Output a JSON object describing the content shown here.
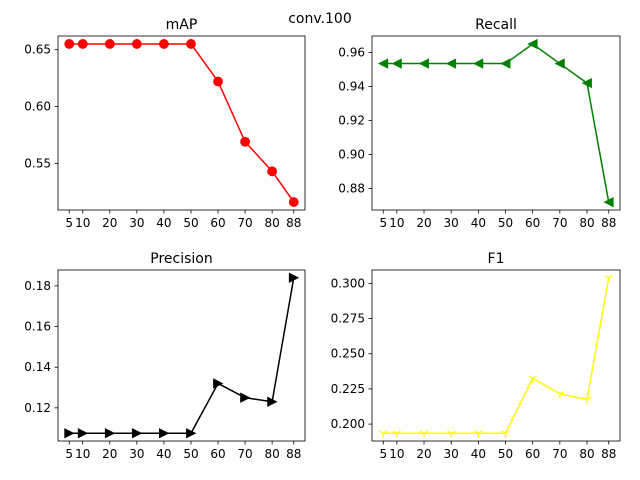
{
  "suptitle": "conv.100",
  "chart_data": [
    {
      "type": "line",
      "title": "mAP",
      "color": "#ff0000",
      "marker": "circle",
      "x": [
        5,
        10,
        20,
        30,
        40,
        50,
        60,
        70,
        80,
        88
      ],
      "values": [
        0.655,
        0.655,
        0.655,
        0.655,
        0.655,
        0.655,
        0.622,
        0.569,
        0.543,
        0.516
      ],
      "xticks": [
        5,
        10,
        20,
        30,
        40,
        50,
        60,
        70,
        80,
        88
      ],
      "xtick_labels": [
        "5",
        "10",
        "20",
        "30",
        "40",
        "50",
        "60",
        "70",
        "80",
        "88"
      ],
      "yticks": [
        0.55,
        0.6,
        0.65
      ],
      "ytick_labels": [
        "0.55",
        "0.60",
        "0.65"
      ],
      "xlim": [
        0.85,
        92.15
      ],
      "ylim": [
        0.509,
        0.662
      ]
    },
    {
      "type": "line",
      "title": "Recall",
      "color": "#008000",
      "marker": "triangle-left",
      "x": [
        5,
        10,
        20,
        30,
        40,
        50,
        60,
        70,
        80,
        88
      ],
      "values": [
        0.9535,
        0.9535,
        0.9535,
        0.9535,
        0.9535,
        0.9535,
        0.965,
        0.9535,
        0.942,
        0.872
      ],
      "xticks": [
        5,
        10,
        20,
        30,
        40,
        50,
        60,
        70,
        80,
        88
      ],
      "xtick_labels": [
        "5",
        "10",
        "20",
        "30",
        "40",
        "50",
        "60",
        "70",
        "80",
        "88"
      ],
      "yticks": [
        0.88,
        0.9,
        0.92,
        0.94,
        0.96
      ],
      "ytick_labels": [
        "0.88",
        "0.90",
        "0.92",
        "0.94",
        "0.96"
      ],
      "xlim": [
        0.85,
        92.15
      ],
      "ylim": [
        0.8674,
        0.9697
      ]
    },
    {
      "type": "line",
      "title": "Precision",
      "color": "#000000",
      "marker": "triangle-right",
      "x": [
        5,
        10,
        20,
        30,
        40,
        50,
        60,
        70,
        80,
        88
      ],
      "values": [
        0.1075,
        0.1075,
        0.1075,
        0.1075,
        0.1075,
        0.1075,
        0.132,
        0.125,
        0.123,
        0.184
      ],
      "xticks": [
        5,
        10,
        20,
        30,
        40,
        50,
        60,
        70,
        80,
        88
      ],
      "xtick_labels": [
        "5",
        "10",
        "20",
        "30",
        "40",
        "50",
        "60",
        "70",
        "80",
        "88"
      ],
      "yticks": [
        0.12,
        0.14,
        0.16,
        0.18
      ],
      "ytick_labels": [
        "0.12",
        "0.14",
        "0.16",
        "0.18"
      ],
      "xlim": [
        0.85,
        92.15
      ],
      "ylim": [
        0.1037,
        0.1878
      ]
    },
    {
      "type": "line",
      "title": "F1",
      "color": "#ffff00",
      "marker": "tri-down",
      "x": [
        5,
        10,
        20,
        30,
        40,
        50,
        60,
        70,
        80,
        88
      ],
      "values": [
        0.1935,
        0.1935,
        0.1935,
        0.1935,
        0.1935,
        0.1935,
        0.2325,
        0.2215,
        0.2175,
        0.304
      ],
      "xticks": [
        5,
        10,
        20,
        30,
        40,
        50,
        60,
        70,
        80,
        88
      ],
      "xtick_labels": [
        "5",
        "10",
        "20",
        "30",
        "40",
        "50",
        "60",
        "70",
        "80",
        "88"
      ],
      "yticks": [
        0.2,
        0.225,
        0.25,
        0.275,
        0.3
      ],
      "ytick_labels": [
        "0.200",
        "0.225",
        "0.250",
        "0.275",
        "0.300"
      ],
      "xlim": [
        0.85,
        92.15
      ],
      "ylim": [
        0.188,
        0.3095
      ]
    }
  ]
}
